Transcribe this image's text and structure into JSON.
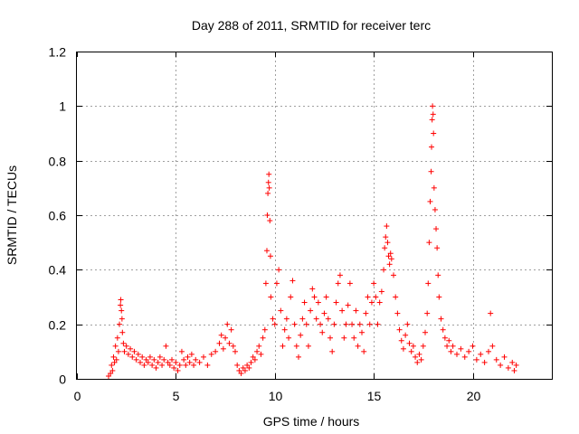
{
  "chart_data": {
    "type": "scatter",
    "title": "Day 288 of 2011, SRMTID for receiver terc",
    "xlabel": "GPS time / hours",
    "ylabel": "SRMTID / TECUs",
    "xlim": [
      0,
      24
    ],
    "ylim": [
      0,
      1.2
    ],
    "xticks": [
      0,
      5,
      10,
      15,
      20
    ],
    "xtick_labels": [
      "0",
      "5",
      "10",
      "15",
      "20"
    ],
    "yticks": [
      0,
      0.2,
      0.4,
      0.6,
      0.8,
      1,
      1.2
    ],
    "ytick_labels": [
      "0",
      "0.2",
      "0.4",
      "0.6",
      "0.8",
      "1",
      "1.2"
    ],
    "grid": true,
    "marker": "+",
    "color": "#ff0000",
    "series": [
      {
        "points": [
          [
            1.6,
            0.01
          ],
          [
            1.7,
            0.02
          ],
          [
            1.75,
            0.05
          ],
          [
            1.8,
            0.03
          ],
          [
            1.85,
            0.08
          ],
          [
            1.9,
            0.06
          ],
          [
            1.95,
            0.12
          ],
          [
            2.0,
            0.07
          ],
          [
            2.05,
            0.15
          ],
          [
            2.1,
            0.1
          ],
          [
            2.15,
            0.2
          ],
          [
            2.2,
            0.27
          ],
          [
            2.22,
            0.29
          ],
          [
            2.25,
            0.25
          ],
          [
            2.28,
            0.22
          ],
          [
            2.3,
            0.17
          ],
          [
            2.35,
            0.13
          ],
          [
            2.4,
            0.1
          ],
          [
            2.5,
            0.12
          ],
          [
            2.6,
            0.09
          ],
          [
            2.7,
            0.11
          ],
          [
            2.8,
            0.08
          ],
          [
            2.9,
            0.1
          ],
          [
            3.0,
            0.07
          ],
          [
            3.1,
            0.09
          ],
          [
            3.2,
            0.06
          ],
          [
            3.3,
            0.08
          ],
          [
            3.4,
            0.05
          ],
          [
            3.5,
            0.07
          ],
          [
            3.6,
            0.06
          ],
          [
            3.7,
            0.08
          ],
          [
            3.8,
            0.05
          ],
          [
            3.9,
            0.07
          ],
          [
            4.0,
            0.04
          ],
          [
            4.1,
            0.06
          ],
          [
            4.2,
            0.08
          ],
          [
            4.3,
            0.05
          ],
          [
            4.4,
            0.07
          ],
          [
            4.5,
            0.12
          ],
          [
            4.6,
            0.06
          ],
          [
            4.7,
            0.05
          ],
          [
            4.8,
            0.07
          ],
          [
            4.9,
            0.04
          ],
          [
            5.0,
            0.06
          ],
          [
            5.1,
            0.03
          ],
          [
            5.2,
            0.05
          ],
          [
            5.3,
            0.1
          ],
          [
            5.4,
            0.07
          ],
          [
            5.5,
            0.05
          ],
          [
            5.6,
            0.08
          ],
          [
            5.7,
            0.06
          ],
          [
            5.8,
            0.09
          ],
          [
            5.9,
            0.05
          ],
          [
            6.0,
            0.07
          ],
          [
            6.2,
            0.06
          ],
          [
            6.4,
            0.08
          ],
          [
            6.6,
            0.05
          ],
          [
            6.8,
            0.09
          ],
          [
            7.0,
            0.1
          ],
          [
            7.2,
            0.13
          ],
          [
            7.3,
            0.16
          ],
          [
            7.4,
            0.11
          ],
          [
            7.5,
            0.15
          ],
          [
            7.6,
            0.2
          ],
          [
            7.7,
            0.13
          ],
          [
            7.8,
            0.18
          ],
          [
            7.9,
            0.12
          ],
          [
            8.0,
            0.1
          ],
          [
            8.1,
            0.05
          ],
          [
            8.2,
            0.03
          ],
          [
            8.3,
            0.02
          ],
          [
            8.4,
            0.04
          ],
          [
            8.5,
            0.03
          ],
          [
            8.6,
            0.05
          ],
          [
            8.7,
            0.04
          ],
          [
            8.8,
            0.06
          ],
          [
            8.9,
            0.08
          ],
          [
            9.0,
            0.07
          ],
          [
            9.1,
            0.1
          ],
          [
            9.2,
            0.12
          ],
          [
            9.3,
            0.09
          ],
          [
            9.4,
            0.15
          ],
          [
            9.5,
            0.18
          ],
          [
            9.55,
            0.35
          ],
          [
            9.6,
            0.47
          ],
          [
            9.62,
            0.6
          ],
          [
            9.65,
            0.68
          ],
          [
            9.68,
            0.72
          ],
          [
            9.7,
            0.75
          ],
          [
            9.72,
            0.7
          ],
          [
            9.75,
            0.58
          ],
          [
            9.78,
            0.45
          ],
          [
            9.8,
            0.3
          ],
          [
            9.9,
            0.22
          ],
          [
            10.0,
            0.2
          ],
          [
            10.1,
            0.35
          ],
          [
            10.2,
            0.4
          ],
          [
            10.3,
            0.25
          ],
          [
            10.4,
            0.12
          ],
          [
            10.5,
            0.18
          ],
          [
            10.6,
            0.22
          ],
          [
            10.7,
            0.15
          ],
          [
            10.8,
            0.3
          ],
          [
            10.9,
            0.36
          ],
          [
            11.0,
            0.2
          ],
          [
            11.1,
            0.12
          ],
          [
            11.2,
            0.08
          ],
          [
            11.3,
            0.16
          ],
          [
            11.4,
            0.22
          ],
          [
            11.5,
            0.28
          ],
          [
            11.6,
            0.2
          ],
          [
            11.7,
            0.12
          ],
          [
            11.8,
            0.25
          ],
          [
            11.9,
            0.33
          ],
          [
            12.0,
            0.3
          ],
          [
            12.1,
            0.22
          ],
          [
            12.2,
            0.28
          ],
          [
            12.3,
            0.2
          ],
          [
            12.4,
            0.17
          ],
          [
            12.5,
            0.24
          ],
          [
            12.6,
            0.3
          ],
          [
            12.7,
            0.22
          ],
          [
            12.8,
            0.15
          ],
          [
            12.9,
            0.1
          ],
          [
            13.0,
            0.2
          ],
          [
            13.1,
            0.28
          ],
          [
            13.2,
            0.35
          ],
          [
            13.3,
            0.38
          ],
          [
            13.4,
            0.25
          ],
          [
            13.5,
            0.15
          ],
          [
            13.6,
            0.2
          ],
          [
            13.7,
            0.27
          ],
          [
            13.8,
            0.35
          ],
          [
            13.9,
            0.2
          ],
          [
            14.0,
            0.15
          ],
          [
            14.1,
            0.25
          ],
          [
            14.2,
            0.12
          ],
          [
            14.3,
            0.2
          ],
          [
            14.4,
            0.17
          ],
          [
            14.5,
            0.1
          ],
          [
            14.6,
            0.24
          ],
          [
            14.7,
            0.3
          ],
          [
            14.8,
            0.2
          ],
          [
            14.9,
            0.28
          ],
          [
            15.0,
            0.35
          ],
          [
            15.1,
            0.3
          ],
          [
            15.2,
            0.2
          ],
          [
            15.3,
            0.28
          ],
          [
            15.4,
            0.32
          ],
          [
            15.5,
            0.4
          ],
          [
            15.55,
            0.48
          ],
          [
            15.6,
            0.52
          ],
          [
            15.65,
            0.56
          ],
          [
            15.7,
            0.5
          ],
          [
            15.75,
            0.45
          ],
          [
            15.8,
            0.42
          ],
          [
            15.85,
            0.46
          ],
          [
            15.9,
            0.44
          ],
          [
            16.0,
            0.38
          ],
          [
            16.1,
            0.3
          ],
          [
            16.2,
            0.24
          ],
          [
            16.3,
            0.18
          ],
          [
            16.4,
            0.14
          ],
          [
            16.5,
            0.11
          ],
          [
            16.6,
            0.16
          ],
          [
            16.7,
            0.2
          ],
          [
            16.8,
            0.13
          ],
          [
            16.9,
            0.1
          ],
          [
            17.0,
            0.12
          ],
          [
            17.1,
            0.08
          ],
          [
            17.2,
            0.06
          ],
          [
            17.3,
            0.09
          ],
          [
            17.4,
            0.07
          ],
          [
            17.5,
            0.12
          ],
          [
            17.6,
            0.17
          ],
          [
            17.7,
            0.24
          ],
          [
            17.75,
            0.35
          ],
          [
            17.8,
            0.5
          ],
          [
            17.85,
            0.65
          ],
          [
            17.9,
            0.76
          ],
          [
            17.92,
            0.85
          ],
          [
            17.95,
            0.95
          ],
          [
            17.97,
            1.0
          ],
          [
            18.0,
            0.97
          ],
          [
            18.02,
            0.9
          ],
          [
            18.05,
            0.7
          ],
          [
            18.1,
            0.62
          ],
          [
            18.15,
            0.55
          ],
          [
            18.2,
            0.48
          ],
          [
            18.25,
            0.38
          ],
          [
            18.3,
            0.3
          ],
          [
            18.4,
            0.22
          ],
          [
            18.5,
            0.18
          ],
          [
            18.6,
            0.15
          ],
          [
            18.7,
            0.12
          ],
          [
            18.8,
            0.14
          ],
          [
            18.9,
            0.1
          ],
          [
            19.0,
            0.12
          ],
          [
            19.2,
            0.09
          ],
          [
            19.4,
            0.11
          ],
          [
            19.6,
            0.08
          ],
          [
            19.8,
            0.1
          ],
          [
            20.0,
            0.12
          ],
          [
            20.2,
            0.07
          ],
          [
            20.4,
            0.09
          ],
          [
            20.6,
            0.06
          ],
          [
            20.8,
            0.1
          ],
          [
            20.9,
            0.24
          ],
          [
            21.0,
            0.12
          ],
          [
            21.2,
            0.07
          ],
          [
            21.4,
            0.05
          ],
          [
            21.6,
            0.08
          ],
          [
            21.8,
            0.04
          ],
          [
            22.0,
            0.06
          ],
          [
            22.1,
            0.03
          ],
          [
            22.2,
            0.05
          ]
        ]
      }
    ]
  }
}
